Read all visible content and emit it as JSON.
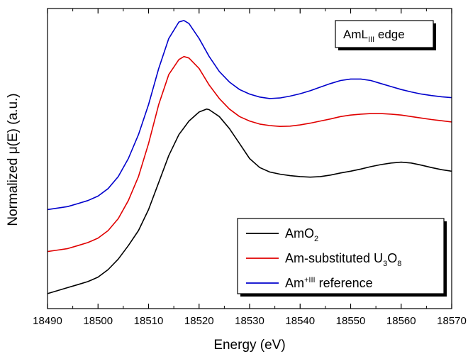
{
  "chart_data": {
    "type": "line",
    "title": "",
    "xlabel": "Energy (eV)",
    "ylabel": "Normalized μ(E) (a.u.)",
    "xlim": [
      18490,
      18570
    ],
    "ylim": [
      0,
      1
    ],
    "y_ticks_labeled": false,
    "grid": false,
    "x_ticks": [
      18490,
      18500,
      18510,
      18520,
      18530,
      18540,
      18550,
      18560,
      18570
    ],
    "annotation": {
      "base": "AmL",
      "sub": "III",
      "suffix": " edge",
      "position": "top-right"
    },
    "legend": {
      "position": "bottom-right"
    },
    "series": [
      {
        "key": "amo2",
        "label_parts": [
          {
            "t": "AmO"
          },
          {
            "t": "2",
            "s": "sub"
          }
        ],
        "color": "#000000",
        "x": [
          18490,
          18492,
          18494,
          18496,
          18498,
          18500,
          18502,
          18504,
          18506,
          18508,
          18510,
          18512,
          18514,
          18516,
          18518,
          18520,
          18521.5,
          18522,
          18524,
          18526,
          18528,
          18530,
          18532,
          18534,
          18536,
          18538,
          18540,
          18542,
          18544,
          18546,
          18548,
          18550,
          18552,
          18554,
          18556,
          18558,
          18560,
          18562,
          18564,
          18566,
          18568,
          18570
        ],
        "y": [
          0.05,
          0.06,
          0.07,
          0.08,
          0.09,
          0.105,
          0.13,
          0.165,
          0.21,
          0.26,
          0.33,
          0.42,
          0.51,
          0.58,
          0.625,
          0.655,
          0.665,
          0.663,
          0.64,
          0.6,
          0.55,
          0.5,
          0.47,
          0.455,
          0.448,
          0.443,
          0.44,
          0.438,
          0.44,
          0.445,
          0.452,
          0.458,
          0.465,
          0.473,
          0.48,
          0.485,
          0.488,
          0.485,
          0.478,
          0.47,
          0.463,
          0.458
        ]
      },
      {
        "key": "am_u3o8",
        "label_parts": [
          {
            "t": "Am-substituted U"
          },
          {
            "t": "3",
            "s": "sub"
          },
          {
            "t": "O"
          },
          {
            "t": "8",
            "s": "sub"
          }
        ],
        "color": "#e00000",
        "x": [
          18490,
          18492,
          18494,
          18496,
          18498,
          18500,
          18502,
          18504,
          18506,
          18508,
          18510,
          18512,
          18514,
          18516,
          18517,
          18518,
          18520,
          18522,
          18524,
          18526,
          18528,
          18530,
          18532,
          18534,
          18536,
          18538,
          18540,
          18542,
          18544,
          18546,
          18548,
          18550,
          18552,
          18554,
          18556,
          18558,
          18560,
          18562,
          18564,
          18566,
          18568,
          18570
        ],
        "y": [
          0.19,
          0.195,
          0.2,
          0.21,
          0.22,
          0.235,
          0.26,
          0.3,
          0.36,
          0.44,
          0.55,
          0.68,
          0.78,
          0.83,
          0.84,
          0.835,
          0.8,
          0.745,
          0.7,
          0.665,
          0.64,
          0.625,
          0.615,
          0.61,
          0.607,
          0.608,
          0.612,
          0.618,
          0.625,
          0.632,
          0.64,
          0.645,
          0.648,
          0.65,
          0.65,
          0.648,
          0.645,
          0.64,
          0.635,
          0.63,
          0.626,
          0.622
        ]
      },
      {
        "key": "am_ref",
        "label_parts": [
          {
            "t": "Am"
          },
          {
            "t": "+III",
            "s": "sup"
          },
          {
            "t": " reference"
          }
        ],
        "color": "#0000cc",
        "x": [
          18490,
          18492,
          18494,
          18496,
          18498,
          18500,
          18502,
          18504,
          18506,
          18508,
          18510,
          18512,
          18514,
          18516,
          18517,
          18518,
          18520,
          18522,
          18524,
          18526,
          18528,
          18530,
          18532,
          18534,
          18536,
          18538,
          18540,
          18542,
          18544,
          18546,
          18548,
          18550,
          18552,
          18554,
          18556,
          18558,
          18560,
          18562,
          18564,
          18566,
          18568,
          18570
        ],
        "y": [
          0.33,
          0.335,
          0.34,
          0.35,
          0.36,
          0.375,
          0.4,
          0.44,
          0.5,
          0.58,
          0.68,
          0.8,
          0.9,
          0.955,
          0.96,
          0.95,
          0.9,
          0.84,
          0.79,
          0.755,
          0.73,
          0.715,
          0.705,
          0.7,
          0.702,
          0.708,
          0.716,
          0.726,
          0.738,
          0.75,
          0.76,
          0.765,
          0.765,
          0.76,
          0.75,
          0.74,
          0.73,
          0.722,
          0.715,
          0.71,
          0.706,
          0.703
        ]
      }
    ]
  }
}
